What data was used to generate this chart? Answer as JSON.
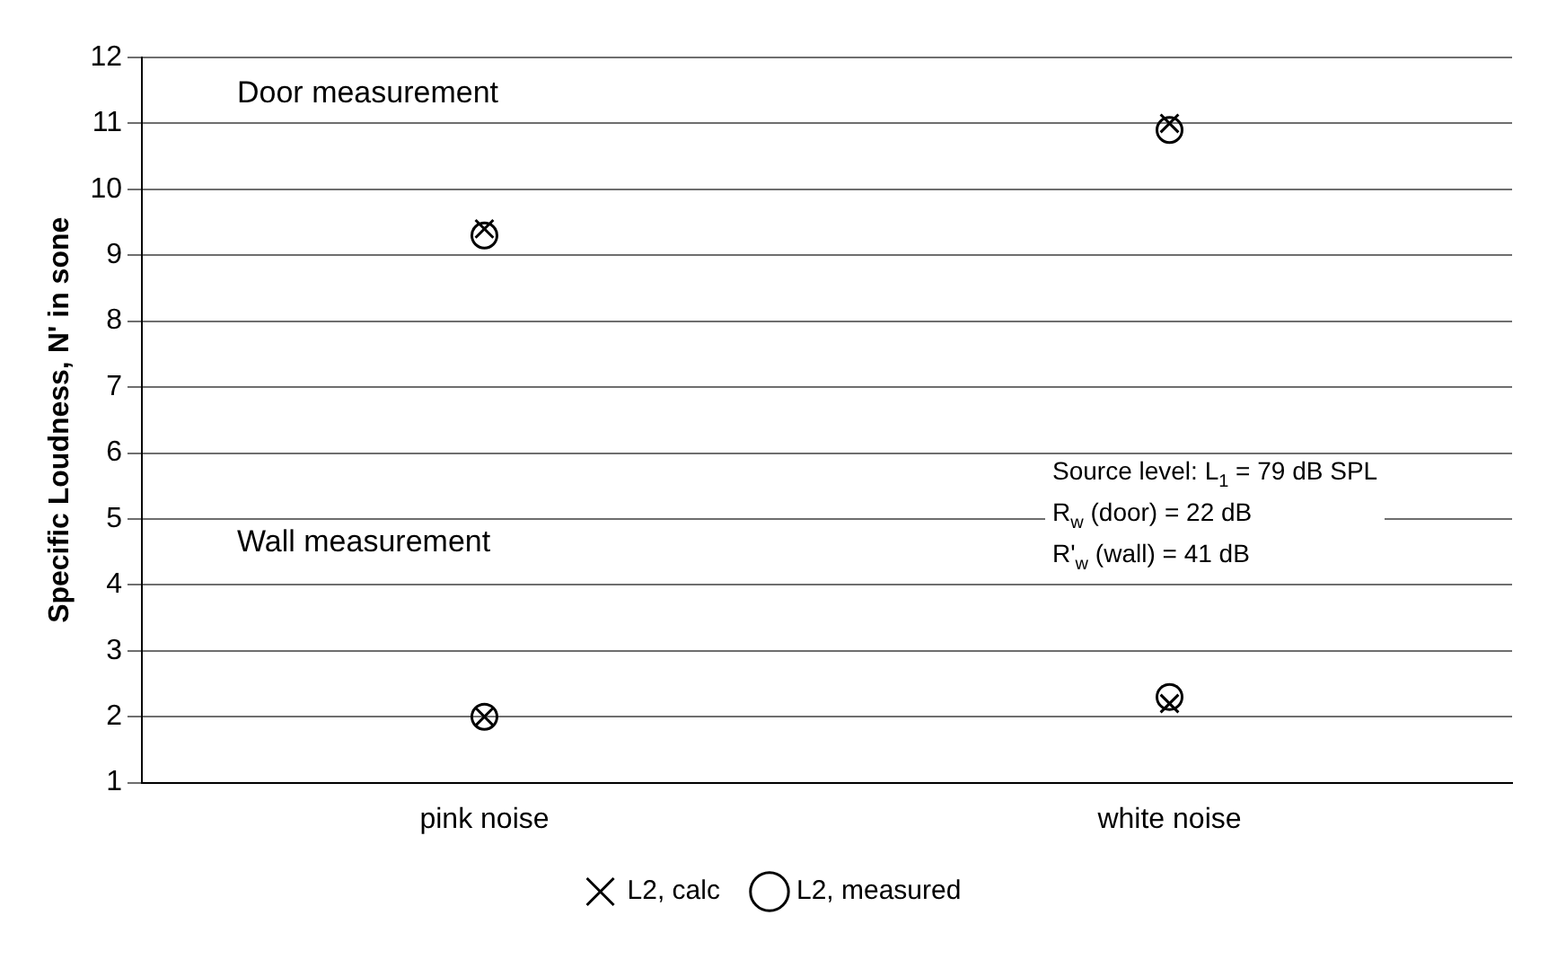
{
  "chart_data": {
    "type": "scatter",
    "ylabel": "Specific Loudness, N' in sone",
    "categories": [
      "pink noise",
      "white noise"
    ],
    "series": [
      {
        "name": "L2, calc",
        "color": "#000000",
        "marker": "cross",
        "x": [
          "pink noise",
          "white noise",
          "pink noise",
          "white noise"
        ],
        "values": [
          9.4,
          11.0,
          2.0,
          2.2
        ]
      },
      {
        "name": "L2, measured",
        "color": "#000000",
        "marker": "circle",
        "x": [
          "pink noise",
          "white noise",
          "pink noise",
          "white noise"
        ],
        "values": [
          9.3,
          10.9,
          2.0,
          2.3
        ]
      }
    ],
    "ylim": [
      1,
      12
    ],
    "yticks": [
      1,
      2,
      3,
      4,
      5,
      6,
      7,
      8,
      9,
      10,
      11,
      12
    ],
    "grid": "y",
    "legend": "bottom",
    "annotations": [
      "Door measurement",
      "Wall measurement",
      "Source level: L$_{1}$ = 79 dB SPL",
      "R$_{w}$ (door) = 22 dB",
      "R'$_{w}$ (wall) = 41 dB"
    ]
  }
}
